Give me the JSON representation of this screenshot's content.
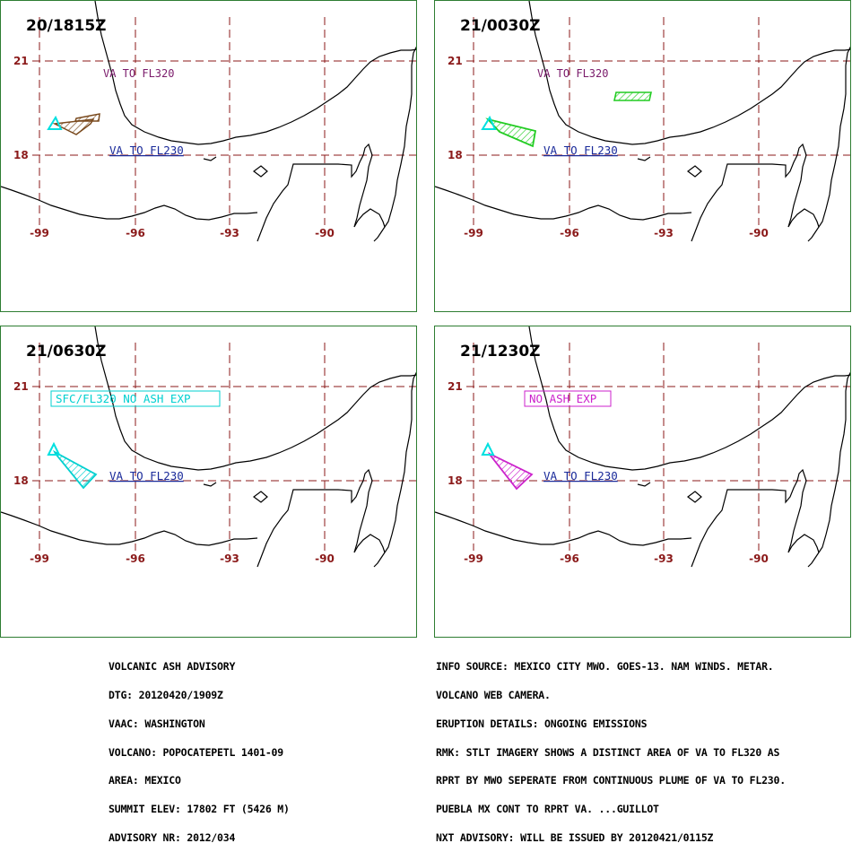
{
  "panels": [
    {
      "time": "20/1815Z",
      "box_label": "",
      "box_color": ""
    },
    {
      "time": "21/0030Z",
      "box_label": "",
      "box_color": ""
    },
    {
      "time": "21/0630Z",
      "box_label": "SFC/FL320 NO ASH EXP",
      "box_color": "#00d0d0"
    },
    {
      "time": "21/1230Z",
      "box_label": "NO ASH EXP",
      "box_color": "#cc22cc"
    }
  ],
  "labels": {
    "upper_layer": "VA TO FL320",
    "lower_layer": "VA TO FL230"
  },
  "axes": {
    "lat_labels": [
      "21",
      "18"
    ],
    "lon_labels": [
      "-99",
      "-96",
      "-93",
      "-90"
    ]
  },
  "colors": {
    "grid": "#8b1a1a",
    "coast": "#000000",
    "volcano": "#00e0e0",
    "plume_20_1815": "#7a4a1e",
    "plume_21_0030": "#22cc22",
    "plume_21_0630": "#00d0d0",
    "plume_21_1230": "#cc22cc",
    "upper_label": "#7a1a6a",
    "lower_label": "#1a2a9a",
    "frame": "#2e7d32"
  },
  "advisory_left": [
    "VOLCANIC ASH ADVISORY",
    "DTG: 20120420/1909Z",
    "VAAC: WASHINGTON",
    "VOLCANO: POPOCATEPETL 1401-09",
    "AREA: MEXICO",
    "SUMMIT ELEV: 17802 FT (5426 M)",
    "ADVISORY NR: 2012/034"
  ],
  "advisory_right": [
    "INFO SOURCE: MEXICO CITY MWO. GOES-13. NAM WINDS. METAR.",
    "VOLCANO WEB CAMERA.",
    "ERUPTION DETAILS: ONGOING EMISSIONS",
    "RMK: STLT IMAGERY SHOWS A DISTINCT AREA OF VA TO FL320 AS",
    "RPRT BY MWO SEPERATE FROM CONTINUOUS PLUME OF VA TO FL230.",
    "PUEBLA MX CONT TO RPRT VA. ...GUILLOT",
    "NXT ADVISORY: WILL BE ISSUED BY 20120421/0115Z"
  ]
}
